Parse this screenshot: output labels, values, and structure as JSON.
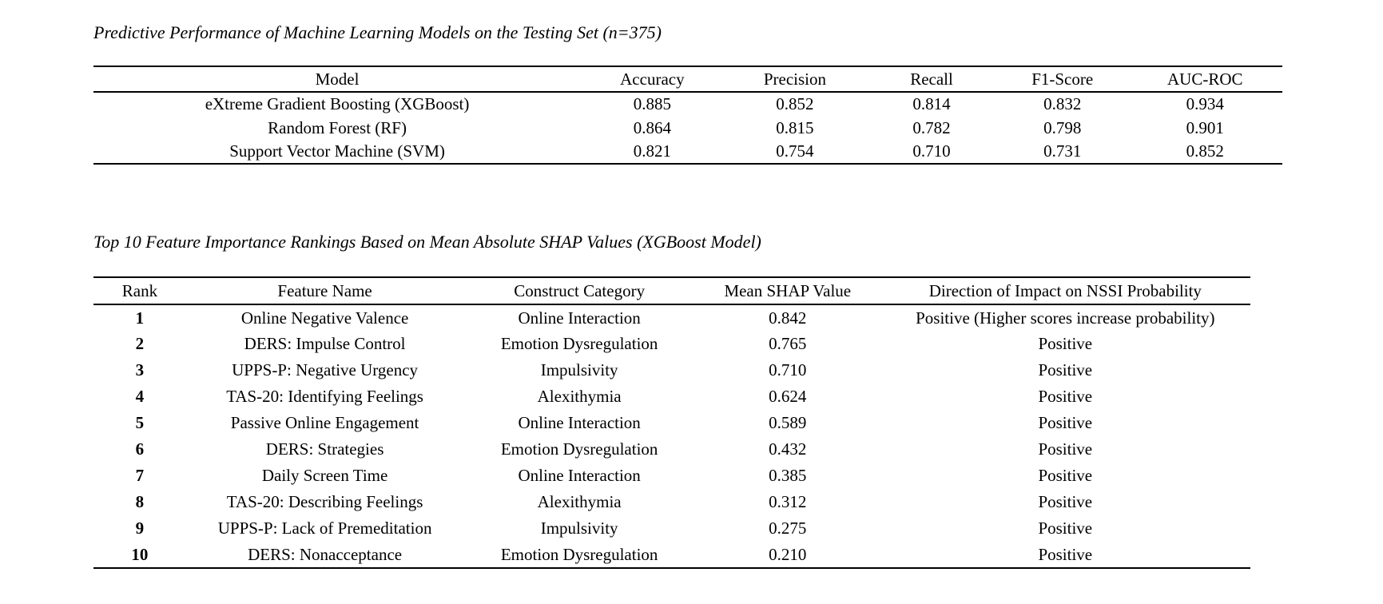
{
  "page": {
    "background": "#ffffff",
    "text_color": "#000000"
  },
  "performance_table": {
    "title": "Predictive Performance of Machine Learning Models on the Testing Set (n=375)",
    "columns": [
      "Model",
      "Accuracy",
      "Precision",
      "Recall",
      "F1-Score",
      "AUC-ROC"
    ],
    "rows": [
      [
        "eXtreme Gradient Boosting (XGBoost)",
        "0.885",
        "0.852",
        "0.814",
        "0.832",
        "0.934"
      ],
      [
        "Random Forest (RF)",
        "0.864",
        "0.815",
        "0.782",
        "0.798",
        "0.901"
      ],
      [
        "Support Vector Machine (SVM)",
        "0.821",
        "0.754",
        "0.710",
        "0.731",
        "0.852"
      ]
    ]
  },
  "shap_table": {
    "title": "Top 10 Feature Importance Rankings Based on Mean Absolute SHAP Values (XGBoost Model)",
    "columns": [
      "Rank",
      "Feature Name",
      "Construct Category",
      "Mean SHAP Value",
      "Direction of Impact on NSSI Probability"
    ],
    "rows": [
      [
        "1",
        "Online Negative Valence",
        "Online Interaction",
        "0.842",
        "Positive (Higher scores increase probability)"
      ],
      [
        "2",
        "DERS: Impulse Control",
        "Emotion Dysregulation",
        "0.765",
        "Positive"
      ],
      [
        "3",
        "UPPS-P: Negative Urgency",
        "Impulsivity",
        "0.710",
        "Positive"
      ],
      [
        "4",
        "TAS-20: Identifying Feelings",
        "Alexithymia",
        "0.624",
        "Positive"
      ],
      [
        "5",
        "Passive Online Engagement",
        "Online Interaction",
        "0.589",
        "Positive"
      ],
      [
        "6",
        "DERS: Strategies",
        "Emotion Dysregulation",
        "0.432",
        "Positive"
      ],
      [
        "7",
        "Daily Screen Time",
        "Online Interaction",
        "0.385",
        "Positive"
      ],
      [
        "8",
        "TAS-20: Describing Feelings",
        "Alexithymia",
        "0.312",
        "Positive"
      ],
      [
        "9",
        "UPPS-P: Lack of Premeditation",
        "Impulsivity",
        "0.275",
        "Positive"
      ],
      [
        "10",
        "DERS: Nonacceptance",
        "Emotion Dysregulation",
        "0.210",
        "Positive"
      ]
    ]
  }
}
